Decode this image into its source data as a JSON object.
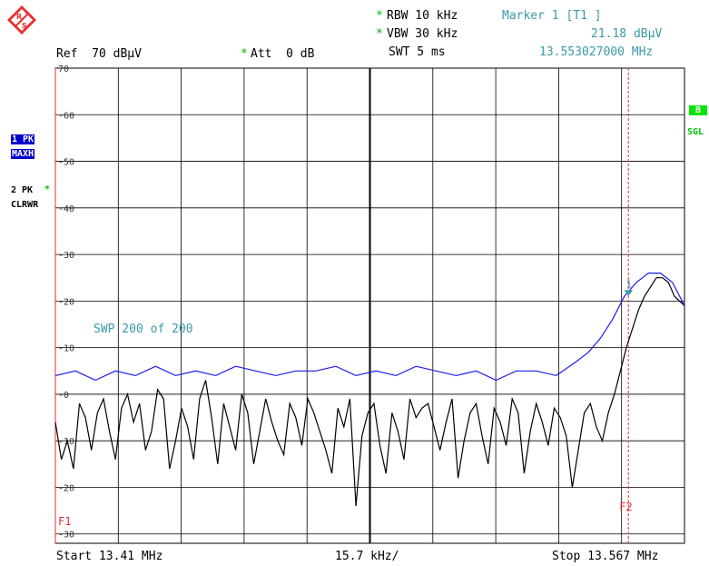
{
  "header": {
    "rbw_star": "*",
    "rbw": "RBW 10 kHz",
    "vbw_star": "*",
    "vbw": "VBW 30 kHz",
    "swt": "SWT 5 ms",
    "marker_label": "Marker 1 [T1 ]",
    "marker_level": "21.18 dBµV",
    "marker_freq": "13.553027000 MHz",
    "ref": "Ref  70 dBµV",
    "att_star": "*",
    "att": "Att  0 dB"
  },
  "side_left": {
    "trace1_line1": "1 PK",
    "trace1_line2": "MAXH",
    "trace2_line1": "2 PK",
    "trace2_star": "*",
    "trace2_line2": "CLRWR"
  },
  "side_right": {
    "badge_b": "B",
    "sgl": "SGL"
  },
  "colors": {
    "trace1": "#1c1cf0",
    "trace2": "#000000",
    "grid": "#000000",
    "marker": "#e03030",
    "teal": "#3a9aa8",
    "badge_green": "#00e600",
    "badge_blue": "#0000cc"
  },
  "footer": {
    "start": "Start 13.41 MHz",
    "span": "15.7 kHz/",
    "stop": "Stop 13.567 MHz"
  },
  "chart_data": {
    "type": "line",
    "x_unit": "MHz",
    "y_unit": "dBµV",
    "xlim": [
      13.41,
      13.567
    ],
    "ylim": [
      -32,
      70
    ],
    "y_ticks": [
      70,
      60,
      50,
      40,
      30,
      20,
      10,
      0,
      -10,
      -20,
      -30
    ],
    "y_tick_labels": [
      "70",
      "-60",
      "-50",
      "-40",
      "-30",
      "-20",
      "-10",
      "-0",
      "-10",
      "-20",
      "-30"
    ],
    "grid": true,
    "sweep_annotation": "SWP  200 of  200",
    "limit_label_f1": "F1",
    "limit_label_f2": "F2",
    "f2_line_x": 13.553,
    "marker": {
      "label": "1",
      "x": 13.553027,
      "y": 21.18
    },
    "series": [
      {
        "name": "1 PK MAXH",
        "color": "#1c1cf0",
        "x": [
          13.41,
          13.415,
          13.42,
          13.425,
          13.43,
          13.435,
          13.44,
          13.445,
          13.45,
          13.455,
          13.46,
          13.465,
          13.47,
          13.475,
          13.48,
          13.485,
          13.49,
          13.495,
          13.5,
          13.505,
          13.51,
          13.515,
          13.52,
          13.525,
          13.53,
          13.535,
          13.54,
          13.543,
          13.546,
          13.549,
          13.552,
          13.555,
          13.558,
          13.561,
          13.564,
          13.567
        ],
        "y": [
          4,
          5,
          3,
          5,
          4,
          6,
          4,
          5,
          4,
          6,
          5,
          4,
          5,
          5,
          6,
          4,
          5,
          4,
          6,
          5,
          4,
          5,
          3,
          5,
          5,
          4,
          7,
          9,
          12,
          16,
          21,
          24,
          26,
          26,
          24,
          19
        ]
      },
      {
        "name": "2 PK CLRWR",
        "color": "#000000",
        "x": [
          13.41,
          13.4115,
          13.413,
          13.4145,
          13.416,
          13.4175,
          13.419,
          13.4205,
          13.422,
          13.4235,
          13.425,
          13.4265,
          13.428,
          13.4295,
          13.431,
          13.4325,
          13.434,
          13.4355,
          13.437,
          13.4385,
          13.44,
          13.4415,
          13.443,
          13.4445,
          13.446,
          13.4475,
          13.449,
          13.4505,
          13.452,
          13.4535,
          13.455,
          13.4565,
          13.458,
          13.4595,
          13.461,
          13.4625,
          13.464,
          13.4655,
          13.467,
          13.4685,
          13.47,
          13.4715,
          13.473,
          13.4745,
          13.476,
          13.4775,
          13.479,
          13.4805,
          13.482,
          13.4835,
          13.485,
          13.4865,
          13.488,
          13.4895,
          13.491,
          13.4925,
          13.494,
          13.4955,
          13.497,
          13.4985,
          13.5,
          13.5015,
          13.503,
          13.5045,
          13.506,
          13.5075,
          13.509,
          13.5105,
          13.512,
          13.5135,
          13.515,
          13.5165,
          13.518,
          13.5195,
          13.521,
          13.5225,
          13.524,
          13.5255,
          13.527,
          13.5285,
          13.53,
          13.5315,
          13.533,
          13.5345,
          13.536,
          13.5375,
          13.539,
          13.5405,
          13.542,
          13.5435,
          13.545,
          13.5465,
          13.548,
          13.5495,
          13.551,
          13.5525,
          13.554,
          13.5555,
          13.557,
          13.5585,
          13.56,
          13.5615,
          13.563,
          13.5645,
          13.567
        ],
        "y": [
          -6,
          -14,
          -10,
          -16,
          -2,
          -5,
          -12,
          -4,
          -1,
          -8,
          -14,
          -3,
          0,
          -6,
          -2,
          -12,
          -8,
          1,
          -1,
          -16,
          -10,
          -3,
          -7,
          -14,
          -1,
          3,
          -5,
          -15,
          -2,
          -7,
          -12,
          0,
          -4,
          -15,
          -8,
          -1,
          -6,
          -10,
          -13,
          -2,
          -5,
          -11,
          -1,
          -4,
          -8,
          -12,
          -17,
          -3,
          -7,
          -1,
          -24,
          -9,
          -4,
          -2,
          -11,
          -17,
          -4,
          -8,
          -14,
          -1,
          -5,
          -3,
          -2,
          -7,
          -12,
          -6,
          -1,
          -18,
          -10,
          -4,
          -2,
          -9,
          -15,
          -3,
          -6,
          -11,
          -1,
          -4,
          -17,
          -8,
          -2,
          -6,
          -11,
          -3,
          -5,
          -9,
          -20,
          -12,
          -4,
          -2,
          -7,
          -10,
          -4,
          0,
          5,
          10,
          14,
          18,
          21,
          23,
          25,
          25,
          24,
          21,
          19
        ]
      }
    ]
  }
}
